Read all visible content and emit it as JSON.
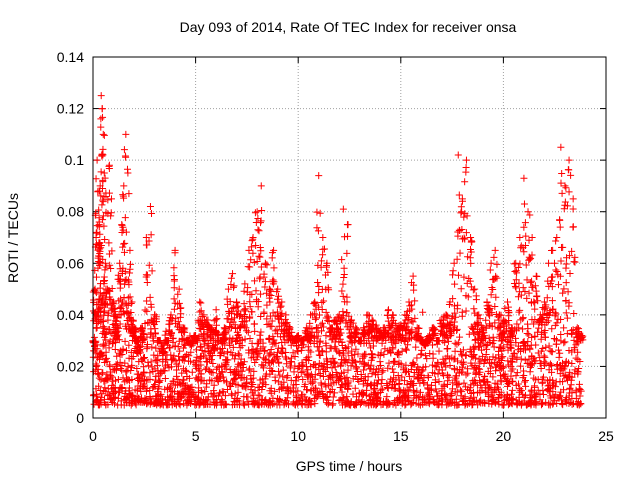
{
  "chart_data": {
    "type": "scatter",
    "title": "Day 093 of 2014, Rate Of TEC Index for receiver onsa",
    "xlabel": "GPS time / hours",
    "ylabel": "ROTI / TECUs",
    "xlim": [
      0,
      25
    ],
    "ylim": [
      0,
      0.14
    ],
    "x_ticks": [
      0,
      5,
      10,
      15,
      20,
      25
    ],
    "x_tick_labels": [
      "0",
      "5",
      "10",
      "15",
      "20",
      "25"
    ],
    "y_ticks": [
      0,
      0.02,
      0.04,
      0.06,
      0.08,
      0.1,
      0.12,
      0.14
    ],
    "y_tick_labels": [
      "0",
      "0.02",
      "0.04",
      "0.06",
      "0.08",
      "0.1",
      "0.12",
      "0.14"
    ],
    "grid": true,
    "marker": "+",
    "series": [
      {
        "name": "ROTI",
        "color": "#ff0000",
        "x": [
          0.05,
          0.1,
          0.15,
          0.2,
          0.25,
          0.3,
          0.35,
          0.4,
          0.45,
          0.5,
          0.55,
          0.6,
          0.7,
          0.8,
          0.9,
          1.0,
          1.1,
          1.2,
          1.3,
          1.4,
          1.5,
          1.6,
          1.7,
          1.8,
          1.9,
          2.0,
          2.1,
          2.2,
          2.4,
          2.6,
          2.8,
          3.0,
          3.2,
          3.4,
          3.6,
          3.8,
          4.0,
          4.2,
          4.4,
          4.6,
          4.8,
          5.0,
          5.2,
          5.4,
          5.6,
          5.8,
          6.0,
          6.2,
          6.4,
          6.6,
          6.8,
          7.0,
          7.2,
          7.4,
          7.6,
          7.8,
          8.0,
          8.2,
          8.4,
          8.6,
          8.8,
          9.0,
          9.2,
          9.4,
          9.6,
          9.8,
          10.0,
          10.2,
          10.4,
          10.6,
          10.8,
          11.0,
          11.2,
          11.4,
          11.6,
          11.8,
          12.0,
          12.2,
          12.4,
          12.6,
          12.8,
          13.0,
          13.2,
          13.4,
          13.6,
          13.8,
          14.0,
          14.2,
          14.4,
          14.6,
          14.8,
          15.0,
          15.2,
          15.4,
          15.6,
          15.8,
          16.0,
          16.2,
          16.4,
          16.6,
          16.8,
          17.0,
          17.2,
          17.4,
          17.6,
          17.8,
          18.0,
          18.2,
          18.4,
          18.6,
          18.8,
          19.0,
          19.2,
          19.4,
          19.6,
          19.8,
          20.0,
          20.2,
          20.4,
          20.6,
          20.8,
          21.0,
          21.2,
          21.4,
          21.6,
          21.8,
          22.0,
          22.2,
          22.4,
          22.6,
          22.8,
          23.0,
          23.2,
          23.4,
          23.6,
          23.8
        ],
        "y": [
          0.026,
          0.05,
          0.07,
          0.1,
          0.088,
          0.075,
          0.09,
          0.125,
          0.12,
          0.11,
          0.095,
          0.06,
          0.05,
          0.098,
          0.085,
          0.045,
          0.04,
          0.035,
          0.06,
          0.075,
          0.09,
          0.11,
          0.095,
          0.065,
          0.045,
          0.035,
          0.03,
          0.025,
          0.035,
          0.07,
          0.082,
          0.04,
          0.03,
          0.025,
          0.03,
          0.04,
          0.065,
          0.05,
          0.035,
          0.03,
          0.028,
          0.032,
          0.045,
          0.04,
          0.038,
          0.035,
          0.042,
          0.03,
          0.035,
          0.05,
          0.056,
          0.045,
          0.04,
          0.052,
          0.065,
          0.07,
          0.08,
          0.09,
          0.06,
          0.05,
          0.065,
          0.05,
          0.045,
          0.04,
          0.035,
          0.03,
          0.032,
          0.03,
          0.035,
          0.04,
          0.045,
          0.094,
          0.07,
          0.06,
          0.035,
          0.038,
          0.04,
          0.081,
          0.075,
          0.038,
          0.035,
          0.03,
          0.035,
          0.04,
          0.038,
          0.036,
          0.034,
          0.035,
          0.042,
          0.04,
          0.035,
          0.036,
          0.04,
          0.045,
          0.055,
          0.035,
          0.03,
          0.028,
          0.032,
          0.035,
          0.03,
          0.038,
          0.04,
          0.045,
          0.06,
          0.102,
          0.085,
          0.1,
          0.07,
          0.05,
          0.04,
          0.035,
          0.045,
          0.06,
          0.065,
          0.04,
          0.038,
          0.045,
          0.035,
          0.06,
          0.07,
          0.093,
          0.08,
          0.07,
          0.055,
          0.04,
          0.045,
          0.06,
          0.065,
          0.07,
          0.105,
          0.09,
          0.1,
          0.085,
          0.035,
          0.032
        ],
        "baseline_band": [
          0.005,
          0.03
        ]
      }
    ]
  }
}
